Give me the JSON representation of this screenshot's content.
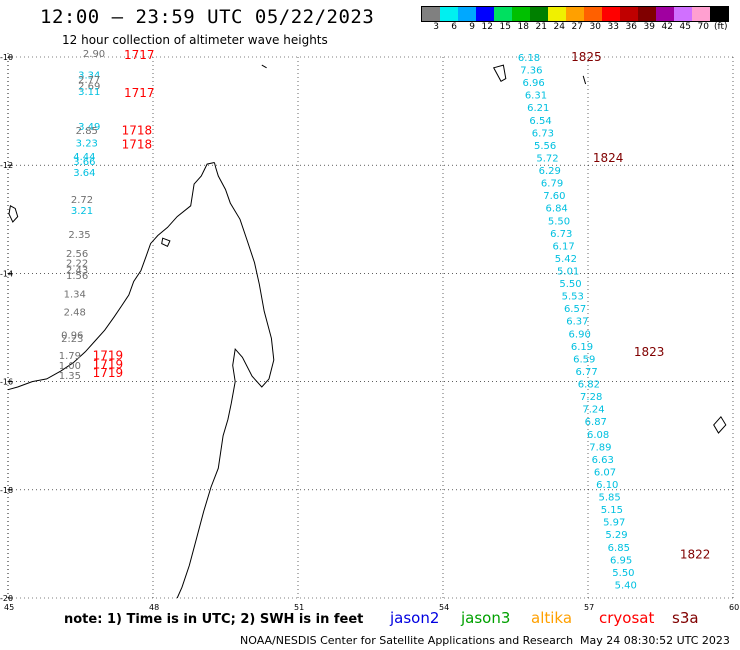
{
  "header": {
    "title": "12:00 – 23:59 UTC 05/22/2023",
    "subtitle": "12 hour collection of altimeter wave heights"
  },
  "legend": {
    "unit": "(ft)",
    "colors": [
      "#808080",
      "#00f0f0",
      "#00a8ff",
      "#0000ff",
      "#00e060",
      "#00c000",
      "#008000",
      "#f0f000",
      "#ffa000",
      "#ff6000",
      "#ff0000",
      "#c00000",
      "#800000",
      "#a000a0",
      "#d070ff",
      "#ffa0d0",
      "#000000"
    ],
    "labels": [
      "3",
      "6",
      "9",
      "12",
      "15",
      "18",
      "21",
      "24",
      "27",
      "30",
      "33",
      "36",
      "39",
      "42",
      "45",
      "70"
    ]
  },
  "map": {
    "lat_ticks": [
      "-10",
      "-12",
      "-14",
      "-16",
      "-18",
      "-20"
    ],
    "lon_ticks": [
      "45",
      "48",
      "51",
      "54",
      "57",
      "60"
    ],
    "track_west": {
      "time_labels": [
        {
          "text": "1717",
          "lat": -10.0,
          "lon": 47.4
        },
        {
          "text": "1717",
          "lat": -10.7,
          "lon": 47.4
        },
        {
          "text": "1718",
          "lat": -11.4,
          "lon": 47.35
        },
        {
          "text": "1718",
          "lat": -11.65,
          "lon": 47.35
        },
        {
          "text": "1719",
          "lat": -15.55,
          "lon": 46.75
        },
        {
          "text": "1719",
          "lat": -15.72,
          "lon": 46.75
        },
        {
          "text": "1719",
          "lat": -15.88,
          "lon": 46.75
        }
      ],
      "swh": [
        {
          "v": "2.90",
          "lat": -10.0,
          "lon": 46.55,
          "c": "gray"
        },
        {
          "v": "3.34",
          "lat": -10.4,
          "lon": 46.45,
          "c": "cyan"
        },
        {
          "v": "2.77",
          "lat": -10.48,
          "lon": 46.45,
          "c": "gray"
        },
        {
          "v": "2.69",
          "lat": -10.6,
          "lon": 46.45,
          "c": "gray"
        },
        {
          "v": "3.11",
          "lat": -10.7,
          "lon": 46.45,
          "c": "cyan"
        },
        {
          "v": "3.49",
          "lat": -11.35,
          "lon": 46.45,
          "c": "cyan"
        },
        {
          "v": "2.85",
          "lat": -11.42,
          "lon": 46.4,
          "c": "gray"
        },
        {
          "v": "3.23",
          "lat": -11.65,
          "lon": 46.4,
          "c": "cyan"
        },
        {
          "v": "4.44",
          "lat": -11.9,
          "lon": 46.35,
          "c": "cyan"
        },
        {
          "v": "3.66",
          "lat": -12.0,
          "lon": 46.35,
          "c": "cyan"
        },
        {
          "v": "3.64",
          "lat": -12.2,
          "lon": 46.35,
          "c": "cyan"
        },
        {
          "v": "2.72",
          "lat": -12.7,
          "lon": 46.3,
          "c": "gray"
        },
        {
          "v": "3.21",
          "lat": -12.9,
          "lon": 46.3,
          "c": "cyan"
        },
        {
          "v": "2.35",
          "lat": -13.35,
          "lon": 46.25,
          "c": "gray"
        },
        {
          "v": "2.56",
          "lat": -13.7,
          "lon": 46.2,
          "c": "gray"
        },
        {
          "v": "2.22",
          "lat": -13.87,
          "lon": 46.2,
          "c": "gray"
        },
        {
          "v": "2.43",
          "lat": -14.0,
          "lon": 46.2,
          "c": "gray"
        },
        {
          "v": "1.56",
          "lat": -14.1,
          "lon": 46.2,
          "c": "gray"
        },
        {
          "v": "1.34",
          "lat": -14.45,
          "lon": 46.15,
          "c": "gray"
        },
        {
          "v": "2.48",
          "lat": -14.78,
          "lon": 46.15,
          "c": "gray"
        },
        {
          "v": "0.96",
          "lat": -15.2,
          "lon": 46.1,
          "c": "gray"
        },
        {
          "v": "2.23",
          "lat": -15.27,
          "lon": 46.1,
          "c": "gray"
        },
        {
          "v": "1.79",
          "lat": -15.58,
          "lon": 46.05,
          "c": "gray"
        },
        {
          "v": "1.00",
          "lat": -15.77,
          "lon": 46.05,
          "c": "gray"
        },
        {
          "v": "1.35",
          "lat": -15.95,
          "lon": 46.05,
          "c": "gray"
        }
      ]
    },
    "track_east": {
      "time_labels": [
        {
          "text": "1825",
          "lat": -10.0,
          "lon": 56.65
        },
        {
          "text": "1824",
          "lat": -11.87,
          "lon": 57.1
        },
        {
          "text": "1823",
          "lat": -15.45,
          "lon": 57.95
        },
        {
          "text": "1822",
          "lat": -19.2,
          "lon": 58.9
        }
      ],
      "swh": [
        "6.18",
        "7.36",
        "6.96",
        "6.31",
        "6.21",
        "6.54",
        "6.73",
        "5.56",
        "5.72",
        "6.29",
        "6.79",
        "7.60",
        "6.84",
        "5.50",
        "6.73",
        "6.17",
        "5.42",
        "5.01",
        "5.50",
        "5.53",
        "6.57",
        "6.37",
        "6.90",
        "6.19",
        "6.59",
        "6.77",
        "6.82",
        "7.28",
        "7.24",
        "6.87",
        "6.08",
        "7.89",
        "6.63",
        "6.07",
        "6.10",
        "5.85",
        "5.15",
        "5.97",
        "5.29",
        "6.85",
        "6.95",
        "5.50",
        "5.40"
      ]
    }
  },
  "footer": {
    "note": "note: 1) Time is in UTC; 2) SWH is in feet",
    "satellites": [
      {
        "name": "jason2",
        "color": "#0000e0"
      },
      {
        "name": "jason3",
        "color": "#00a000"
      },
      {
        "name": "altika",
        "color": "#ffa000"
      },
      {
        "name": "cryosat",
        "color": "#ff0000"
      },
      {
        "name": "s3a",
        "color": "#800000"
      }
    ],
    "credit": "NOAA/NESDIS Center for Satellite Applications and Research",
    "timestamp": "May 24 08:30:52 UTC 2023"
  }
}
